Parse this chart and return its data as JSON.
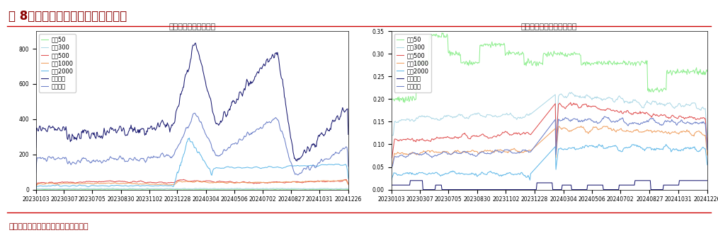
{
  "title": "图 8、各宽基指数破净个股数和占比",
  "subtitle_left": "各宽基指数破净个股数",
  "subtitle_right": "各宽基指数破净个股数占比",
  "source": "数据来源：聚宽，江海证券研究发展部",
  "x_labels": [
    "20230103",
    "20230307",
    "20230705",
    "20230830",
    "20231102",
    "20231228",
    "20240304",
    "20240506",
    "20240702",
    "20240827",
    "20241031",
    "20241226"
  ],
  "legend_labels": [
    "上证50",
    "沪深300",
    "中证500",
    "中证1000",
    "中证2000",
    "创业板指",
    "中证全指"
  ],
  "colors_left": [
    "#90ee90",
    "#add8e6",
    "#e05050",
    "#f0a060",
    "#60b8e8",
    "#191970",
    "#6a7ec8"
  ],
  "colors_right": [
    "#90ee90",
    "#add8e6",
    "#e05050",
    "#f0a060",
    "#60b8e8",
    "#191970",
    "#6a7ec8"
  ],
  "ylim_left": [
    0,
    900
  ],
  "ylim_right": [
    0.0,
    0.35
  ],
  "yticks_left": [
    0,
    200,
    400,
    600,
    800
  ],
  "yticks_right": [
    0.0,
    0.05,
    0.1,
    0.15,
    0.2,
    0.25,
    0.3,
    0.35
  ],
  "n_points": 500,
  "background_color": "#ffffff",
  "plot_bg_color": "#ffffff",
  "title_color": "#8b0000",
  "source_color": "#8b0000",
  "title_fontsize": 12,
  "subtitle_fontsize": 8,
  "tick_fontsize": 5.5,
  "legend_fontsize": 6
}
